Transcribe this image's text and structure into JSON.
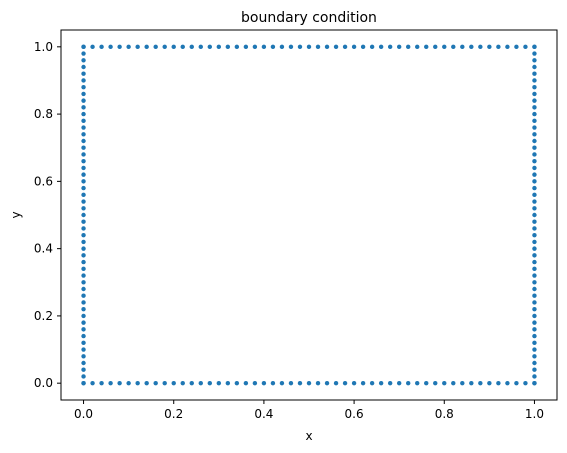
{
  "chart_data": {
    "type": "scatter",
    "title": "boundary condition",
    "xlabel": "x",
    "ylabel": "y",
    "xlim": [
      -0.05,
      1.05
    ],
    "ylim": [
      -0.05,
      1.05
    ],
    "xticks": [
      0.0,
      0.2,
      0.4,
      0.6,
      0.8,
      1.0
    ],
    "xtick_labels": [
      "0.0",
      "0.2",
      "0.4",
      "0.6",
      "0.8",
      "1.0"
    ],
    "yticks": [
      0.0,
      0.2,
      0.4,
      0.6,
      0.8,
      1.0
    ],
    "ytick_labels": [
      "0.0",
      "0.2",
      "0.4",
      "0.6",
      "0.8",
      "1.0"
    ],
    "grid": false,
    "legend": "none",
    "marker_color": "#1f77b4",
    "series": [
      {
        "points_description": "uniformly spaced points along the four edges of the unit square",
        "edges": [
          {
            "from": [
              0,
              0
            ],
            "to": [
              1,
              0
            ],
            "count": 51
          },
          {
            "from": [
              1,
              0
            ],
            "to": [
              1,
              1
            ],
            "count": 51
          },
          {
            "from": [
              1,
              1
            ],
            "to": [
              0,
              1
            ],
            "count": 51
          },
          {
            "from": [
              0,
              1
            ],
            "to": [
              0,
              0
            ],
            "count": 51
          }
        ]
      }
    ]
  }
}
